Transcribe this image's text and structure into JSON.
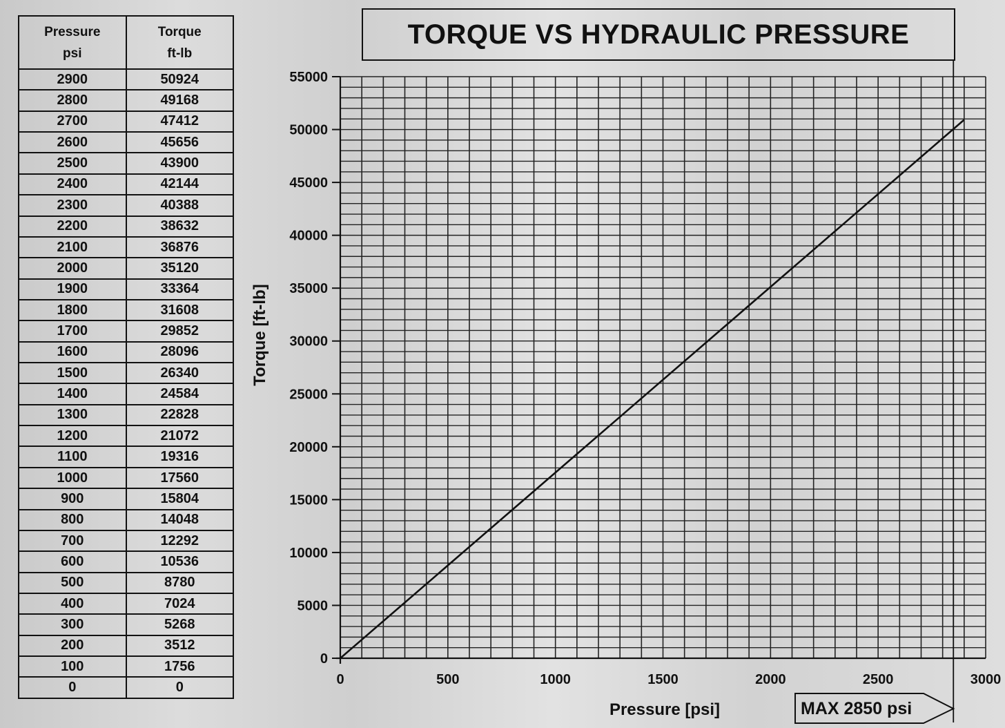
{
  "table": {
    "headers": [
      {
        "line1": "Pressure",
        "line2": "psi"
      },
      {
        "line1": "Torque",
        "line2": "ft-lb"
      }
    ],
    "rows": [
      [
        "2900",
        "50924"
      ],
      [
        "2800",
        "49168"
      ],
      [
        "2700",
        "47412"
      ],
      [
        "2600",
        "45656"
      ],
      [
        "2500",
        "43900"
      ],
      [
        "2400",
        "42144"
      ],
      [
        "2300",
        "40388"
      ],
      [
        "2200",
        "38632"
      ],
      [
        "2100",
        "36876"
      ],
      [
        "2000",
        "35120"
      ],
      [
        "1900",
        "33364"
      ],
      [
        "1800",
        "31608"
      ],
      [
        "1700",
        "29852"
      ],
      [
        "1600",
        "28096"
      ],
      [
        "1500",
        "26340"
      ],
      [
        "1400",
        "24584"
      ],
      [
        "1300",
        "22828"
      ],
      [
        "1200",
        "21072"
      ],
      [
        "1100",
        "19316"
      ],
      [
        "1000",
        "17560"
      ],
      [
        "900",
        "15804"
      ],
      [
        "800",
        "14048"
      ],
      [
        "700",
        "12292"
      ],
      [
        "600",
        "10536"
      ],
      [
        "500",
        "8780"
      ],
      [
        "400",
        "7024"
      ],
      [
        "300",
        "5268"
      ],
      [
        "200",
        "3512"
      ],
      [
        "100",
        "1756"
      ],
      [
        "0",
        "0"
      ]
    ]
  },
  "chart_data": {
    "type": "line",
    "title": "TORQUE VS HYDRAULIC PRESSURE",
    "xlabel": "Pressure [psi]",
    "ylabel": "Torque [ft-lb]",
    "xlim": [
      0,
      3000
    ],
    "ylim": [
      0,
      55000
    ],
    "x_ticks": [
      0,
      500,
      1000,
      1500,
      2000,
      2500,
      3000
    ],
    "y_ticks": [
      0,
      5000,
      10000,
      15000,
      20000,
      25000,
      30000,
      35000,
      40000,
      45000,
      50000,
      55000
    ],
    "x_minor_step": 100,
    "y_minor_step": 1000,
    "grid": true,
    "series": [
      {
        "x": [
          0,
          2900
        ],
        "y": [
          0,
          50924
        ]
      }
    ],
    "max_marker": {
      "label": "MAX 2850 psi",
      "x": 2850
    }
  }
}
